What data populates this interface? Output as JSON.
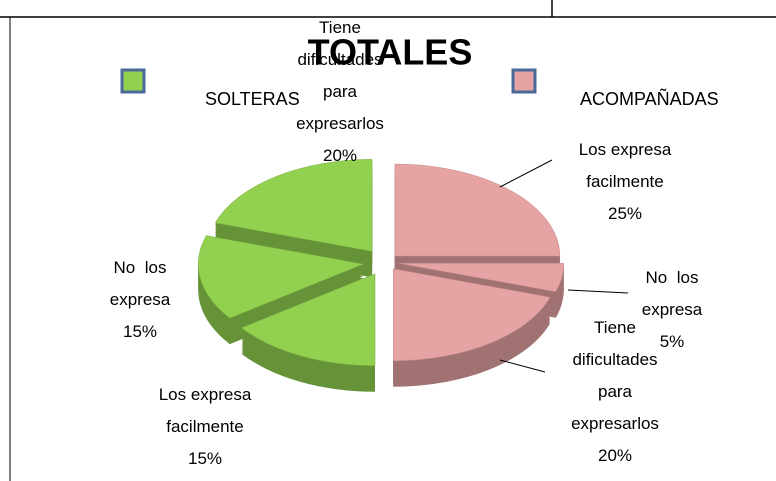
{
  "chart_data": {
    "type": "pie",
    "title": "TOTALES",
    "series": [
      {
        "name": "SOLTERAS",
        "color": "#92d050",
        "categories": [
          "Los expresa facilmente",
          "No  los expresa",
          "Tiene dificultades para expresarlos"
        ],
        "values": [
          15,
          15,
          20
        ],
        "value_labels": [
          "15%",
          "15%",
          "20%"
        ]
      },
      {
        "name": "ACOMPAÑADAS",
        "color": "#e6a3a3",
        "categories": [
          "Los expresa facilmente",
          "No  los expresa",
          "Tiene dificultades para expresarlos"
        ],
        "values": [
          25,
          5,
          20
        ],
        "value_labels": [
          "25%",
          "5%",
          "20%"
        ]
      }
    ]
  }
}
